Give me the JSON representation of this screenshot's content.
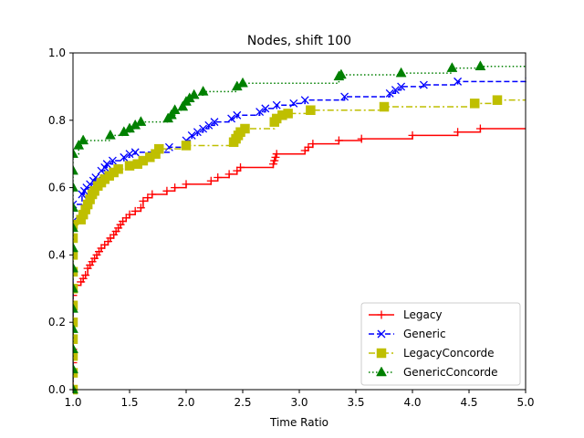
{
  "chart_data": {
    "type": "line",
    "title": "Nodes, shift 100",
    "xlabel": "Time Ratio",
    "ylabel": "",
    "xlim": [
      1.0,
      5.0
    ],
    "ylim": [
      0.0,
      1.0
    ],
    "xticks": [
      1.0,
      1.5,
      2.0,
      2.5,
      3.0,
      3.5,
      4.0,
      4.5,
      5.0
    ],
    "xtick_labels": [
      "1.0",
      "1.5",
      "2.0",
      "2.5",
      "3.0",
      "3.5",
      "4.0",
      "4.5",
      "5.0"
    ],
    "yticks": [
      0.0,
      0.2,
      0.4,
      0.6,
      0.8,
      1.0
    ],
    "ytick_labels": [
      "0.0",
      "0.2",
      "0.4",
      "0.6",
      "0.8",
      "1.0"
    ],
    "grid": false,
    "legend_position": "lower-right",
    "series": [
      {
        "name": "Legacy",
        "color": "#ff0000",
        "linestyle": "solid",
        "marker": "plus",
        "points": [
          [
            1.0,
            0.0
          ],
          [
            1.0,
            0.04
          ],
          [
            1.0,
            0.08
          ],
          [
            1.0,
            0.12
          ],
          [
            1.0,
            0.16
          ],
          [
            1.0,
            0.2
          ],
          [
            1.0,
            0.24
          ],
          [
            1.0,
            0.28
          ],
          [
            1.0,
            0.31
          ],
          [
            1.07,
            0.32
          ],
          [
            1.09,
            0.33
          ],
          [
            1.11,
            0.34
          ],
          [
            1.13,
            0.36
          ],
          [
            1.15,
            0.37
          ],
          [
            1.17,
            0.38
          ],
          [
            1.19,
            0.39
          ],
          [
            1.21,
            0.4
          ],
          [
            1.23,
            0.41
          ],
          [
            1.25,
            0.42
          ],
          [
            1.28,
            0.43
          ],
          [
            1.31,
            0.44
          ],
          [
            1.33,
            0.45
          ],
          [
            1.36,
            0.46
          ],
          [
            1.38,
            0.47
          ],
          [
            1.4,
            0.48
          ],
          [
            1.42,
            0.49
          ],
          [
            1.44,
            0.5
          ],
          [
            1.47,
            0.51
          ],
          [
            1.5,
            0.52
          ],
          [
            1.55,
            0.53
          ],
          [
            1.6,
            0.54
          ],
          [
            1.62,
            0.56
          ],
          [
            1.66,
            0.57
          ],
          [
            1.7,
            0.58
          ],
          [
            1.83,
            0.59
          ],
          [
            1.9,
            0.6
          ],
          [
            2.0,
            0.61
          ],
          [
            2.22,
            0.62
          ],
          [
            2.28,
            0.63
          ],
          [
            2.38,
            0.64
          ],
          [
            2.45,
            0.65
          ],
          [
            2.48,
            0.66
          ],
          [
            2.77,
            0.67
          ],
          [
            2.78,
            0.68
          ],
          [
            2.79,
            0.69
          ],
          [
            2.8,
            0.7
          ],
          [
            3.05,
            0.71
          ],
          [
            3.08,
            0.72
          ],
          [
            3.12,
            0.73
          ],
          [
            3.35,
            0.74
          ],
          [
            3.55,
            0.745
          ],
          [
            4.0,
            0.755
          ],
          [
            4.4,
            0.765
          ],
          [
            4.6,
            0.775
          ],
          [
            5.0,
            0.775
          ]
        ]
      },
      {
        "name": "Generic",
        "color": "#0000ff",
        "linestyle": "dashed",
        "marker": "x",
        "points": [
          [
            1.0,
            0.0
          ],
          [
            1.0,
            0.05
          ],
          [
            1.0,
            0.1
          ],
          [
            1.0,
            0.15
          ],
          [
            1.0,
            0.2
          ],
          [
            1.0,
            0.25
          ],
          [
            1.0,
            0.3
          ],
          [
            1.0,
            0.35
          ],
          [
            1.0,
            0.4
          ],
          [
            1.0,
            0.45
          ],
          [
            1.0,
            0.5
          ],
          [
            1.0,
            0.55
          ],
          [
            1.08,
            0.58
          ],
          [
            1.1,
            0.59
          ],
          [
            1.12,
            0.6
          ],
          [
            1.15,
            0.61
          ],
          [
            1.18,
            0.62
          ],
          [
            1.2,
            0.63
          ],
          [
            1.25,
            0.65
          ],
          [
            1.28,
            0.66
          ],
          [
            1.3,
            0.67
          ],
          [
            1.35,
            0.68
          ],
          [
            1.45,
            0.69
          ],
          [
            1.5,
            0.7
          ],
          [
            1.55,
            0.705
          ],
          [
            1.85,
            0.72
          ],
          [
            2.0,
            0.74
          ],
          [
            2.05,
            0.755
          ],
          [
            2.1,
            0.765
          ],
          [
            2.15,
            0.775
          ],
          [
            2.2,
            0.785
          ],
          [
            2.25,
            0.795
          ],
          [
            2.4,
            0.805
          ],
          [
            2.45,
            0.815
          ],
          [
            2.65,
            0.825
          ],
          [
            2.7,
            0.835
          ],
          [
            2.8,
            0.845
          ],
          [
            2.95,
            0.85
          ],
          [
            3.05,
            0.86
          ],
          [
            3.4,
            0.87
          ],
          [
            3.8,
            0.88
          ],
          [
            3.85,
            0.89
          ],
          [
            3.9,
            0.9
          ],
          [
            4.1,
            0.905
          ],
          [
            4.4,
            0.915
          ],
          [
            5.0,
            0.925
          ]
        ]
      },
      {
        "name": "LegacyConcorde",
        "color": "#bfbf00",
        "linestyle": "dashdot",
        "marker": "square",
        "points": [
          [
            1.0,
            0.0
          ],
          [
            1.0,
            0.05
          ],
          [
            1.0,
            0.1
          ],
          [
            1.0,
            0.15
          ],
          [
            1.0,
            0.2
          ],
          [
            1.0,
            0.25
          ],
          [
            1.0,
            0.3
          ],
          [
            1.0,
            0.35
          ],
          [
            1.0,
            0.4
          ],
          [
            1.0,
            0.45
          ],
          [
            1.0,
            0.49
          ],
          [
            1.07,
            0.505
          ],
          [
            1.09,
            0.52
          ],
          [
            1.11,
            0.535
          ],
          [
            1.13,
            0.55
          ],
          [
            1.15,
            0.565
          ],
          [
            1.17,
            0.58
          ],
          [
            1.19,
            0.59
          ],
          [
            1.22,
            0.605
          ],
          [
            1.25,
            0.615
          ],
          [
            1.28,
            0.625
          ],
          [
            1.32,
            0.635
          ],
          [
            1.36,
            0.645
          ],
          [
            1.4,
            0.655
          ],
          [
            1.5,
            0.665
          ],
          [
            1.57,
            0.67
          ],
          [
            1.62,
            0.68
          ],
          [
            1.68,
            0.69
          ],
          [
            1.73,
            0.7
          ],
          [
            1.76,
            0.715
          ],
          [
            2.0,
            0.725
          ],
          [
            2.42,
            0.735
          ],
          [
            2.44,
            0.745
          ],
          [
            2.46,
            0.755
          ],
          [
            2.48,
            0.765
          ],
          [
            2.52,
            0.775
          ],
          [
            2.78,
            0.795
          ],
          [
            2.8,
            0.805
          ],
          [
            2.85,
            0.815
          ],
          [
            2.9,
            0.82
          ],
          [
            3.1,
            0.83
          ],
          [
            3.75,
            0.84
          ],
          [
            4.55,
            0.85
          ],
          [
            4.75,
            0.86
          ],
          [
            5.0,
            0.86
          ]
        ]
      },
      {
        "name": "GenericConcorde",
        "color": "#008000",
        "linestyle": "dotted",
        "marker": "triangle",
        "points": [
          [
            1.0,
            0.0
          ],
          [
            1.0,
            0.06
          ],
          [
            1.0,
            0.12
          ],
          [
            1.0,
            0.18
          ],
          [
            1.0,
            0.24
          ],
          [
            1.0,
            0.3
          ],
          [
            1.0,
            0.36
          ],
          [
            1.0,
            0.42
          ],
          [
            1.0,
            0.48
          ],
          [
            1.0,
            0.54
          ],
          [
            1.0,
            0.6
          ],
          [
            1.0,
            0.65
          ],
          [
            1.0,
            0.7
          ],
          [
            1.05,
            0.725
          ],
          [
            1.09,
            0.74
          ],
          [
            1.33,
            0.755
          ],
          [
            1.45,
            0.765
          ],
          [
            1.5,
            0.775
          ],
          [
            1.55,
            0.785
          ],
          [
            1.6,
            0.795
          ],
          [
            1.84,
            0.805
          ],
          [
            1.87,
            0.815
          ],
          [
            1.9,
            0.83
          ],
          [
            1.97,
            0.84
          ],
          [
            2.0,
            0.855
          ],
          [
            2.03,
            0.865
          ],
          [
            2.07,
            0.875
          ],
          [
            2.15,
            0.885
          ],
          [
            2.45,
            0.9
          ],
          [
            2.5,
            0.91
          ],
          [
            3.35,
            0.93
          ],
          [
            3.37,
            0.935
          ],
          [
            3.9,
            0.94
          ],
          [
            4.35,
            0.955
          ],
          [
            4.6,
            0.96
          ],
          [
            5.0,
            0.96
          ]
        ]
      }
    ]
  }
}
